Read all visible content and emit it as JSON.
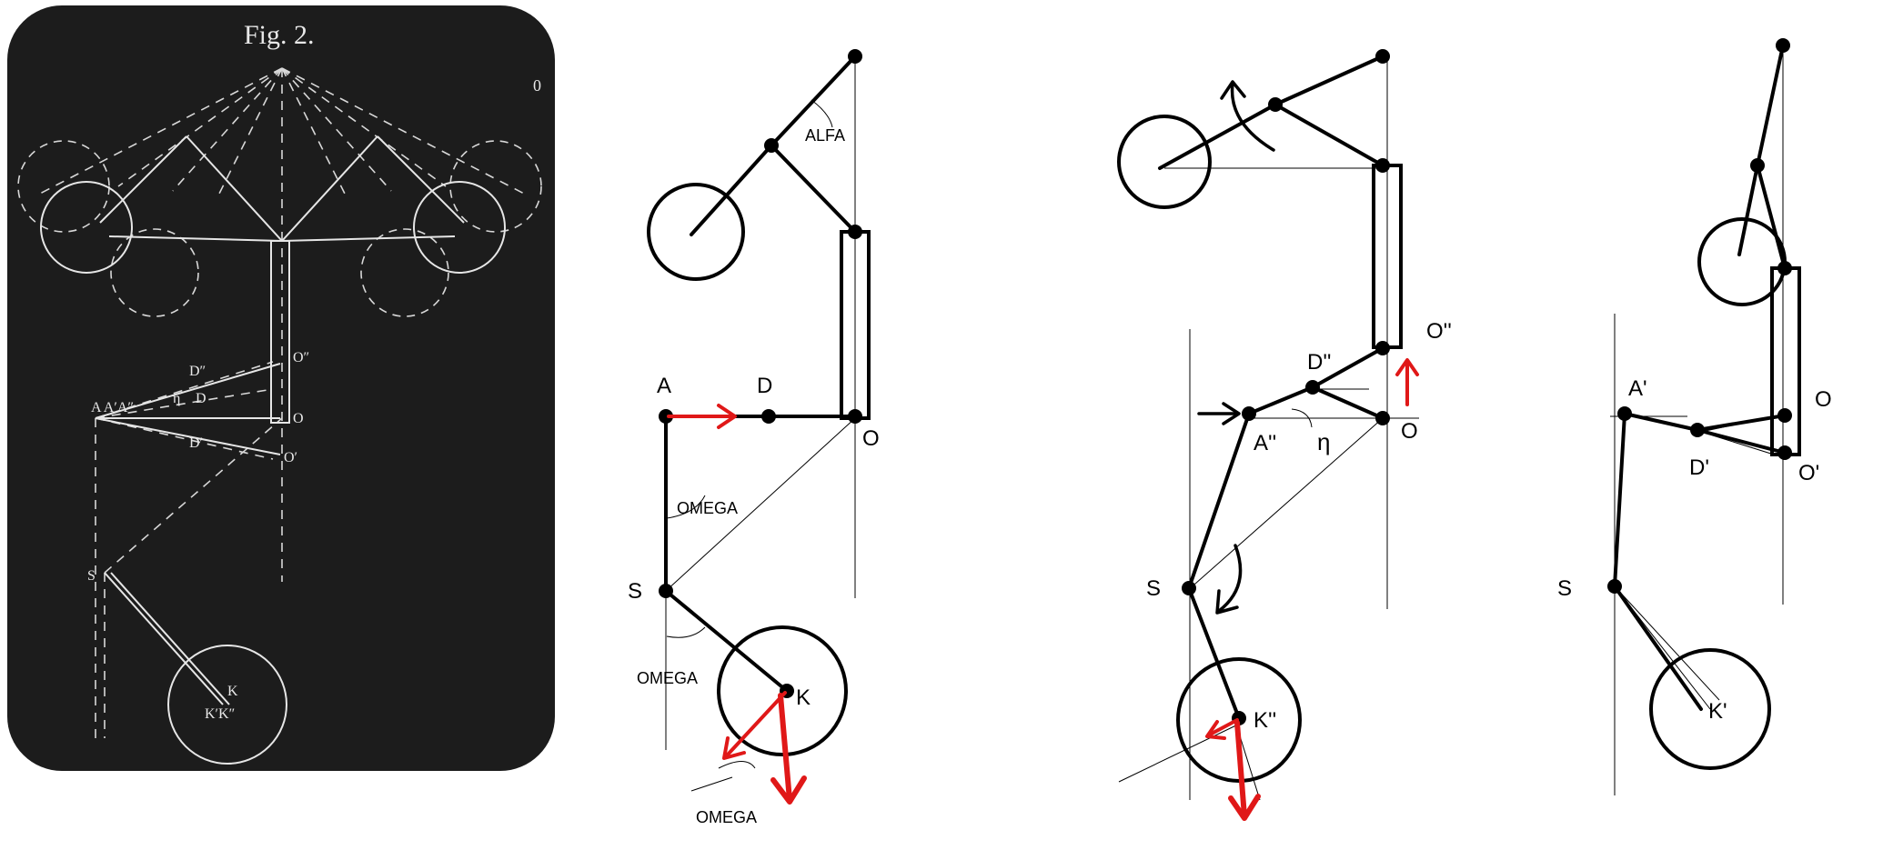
{
  "panel1": {
    "fig_title": "Fig. 2.",
    "corner_mark": "0",
    "labels": {
      "O2": "O″",
      "AAA": "A A′A″",
      "D2": "D″",
      "eta": "η",
      "D": "D",
      "O": "O",
      "D1": "D′",
      "O1": "O′",
      "S": "S",
      "K": "K",
      "KK": "K′K″"
    }
  },
  "panel2": {
    "labels": {
      "alfa": "ALFA",
      "A": "A",
      "D": "D",
      "O": "O",
      "omega1": "OMEGA",
      "S": "S",
      "omega2": "OMEGA",
      "K": "K",
      "omega3": "OMEGA"
    }
  },
  "panel3": {
    "labels": {
      "O2": "O''",
      "D2": "D''",
      "A2": "A''",
      "eta": "η",
      "O": "O",
      "S": "S",
      "K2": "K''"
    }
  },
  "panel4": {
    "labels": {
      "A1": "A'",
      "O": "O",
      "D1": "D'",
      "O1": "O'",
      "S": "S",
      "K1": "K'"
    }
  },
  "colors": {
    "plate_bg": "#1c1c1c",
    "ink": "#000000",
    "arrow": "#e01818",
    "chalk": "#e6e6e6"
  }
}
